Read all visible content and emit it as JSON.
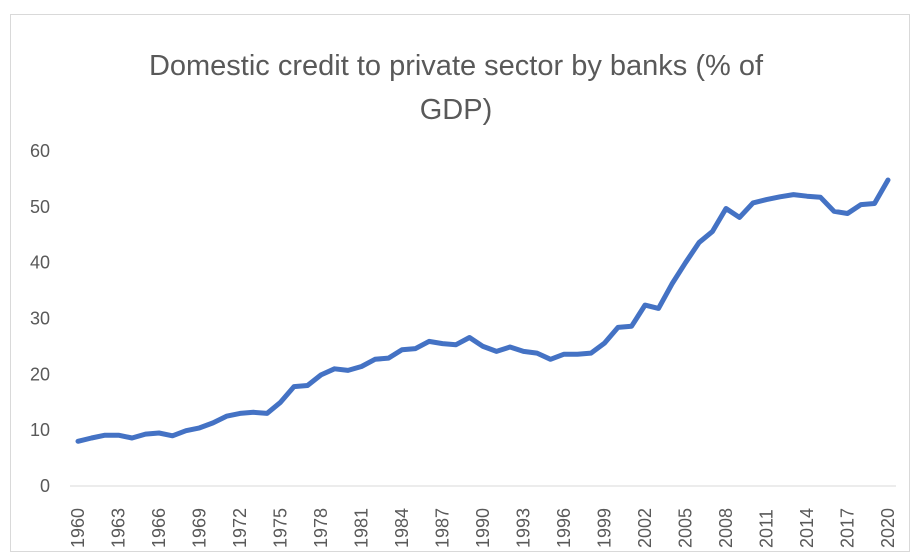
{
  "chart_data": {
    "type": "line",
    "title_lines": [
      "Domestic credit to private sector by banks (% of",
      "GDP)"
    ],
    "xlabel": "",
    "ylabel": "",
    "ylim": [
      0,
      60
    ],
    "yticks": [
      0,
      10,
      20,
      30,
      40,
      50,
      60
    ],
    "xticks": [
      1960,
      1963,
      1966,
      1969,
      1972,
      1975,
      1978,
      1981,
      1984,
      1987,
      1990,
      1993,
      1996,
      1999,
      2002,
      2005,
      2008,
      2011,
      2014,
      2017,
      2020
    ],
    "grid": false,
    "legend": "none",
    "line_color": "#4472C4",
    "series": [
      {
        "x": [
          1960,
          1961,
          1962,
          1963,
          1964,
          1965,
          1966,
          1967,
          1968,
          1969,
          1970,
          1971,
          1972,
          1973,
          1974,
          1975,
          1976,
          1977,
          1978,
          1979,
          1980,
          1981,
          1982,
          1983,
          1984,
          1985,
          1986,
          1987,
          1988,
          1989,
          1990,
          1991,
          1992,
          1993,
          1994,
          1995,
          1996,
          1997,
          1998,
          1999,
          2000,
          2001,
          2002,
          2003,
          2004,
          2005,
          2006,
          2007,
          2008,
          2009,
          2010,
          2011,
          2012,
          2013,
          2014,
          2015,
          2016,
          2017,
          2018,
          2019,
          2020
        ],
        "values": [
          8.0,
          8.6,
          9.1,
          9.1,
          8.6,
          9.3,
          9.5,
          9.0,
          9.9,
          10.4,
          11.3,
          12.5,
          13.0,
          13.2,
          13.0,
          15.0,
          17.8,
          18.0,
          19.9,
          21.0,
          20.7,
          21.4,
          22.7,
          22.9,
          24.4,
          24.6,
          25.9,
          25.5,
          25.3,
          26.6,
          25.0,
          24.1,
          24.9,
          24.1,
          23.8,
          22.7,
          23.6,
          23.6,
          23.8,
          25.6,
          28.4,
          28.6,
          32.4,
          31.8,
          36.2,
          40.0,
          43.6,
          45.6,
          49.7,
          48.1,
          50.7,
          51.3,
          51.8,
          52.2,
          51.9,
          51.7,
          49.2,
          48.8,
          50.4,
          50.6,
          54.8
        ]
      }
    ]
  }
}
